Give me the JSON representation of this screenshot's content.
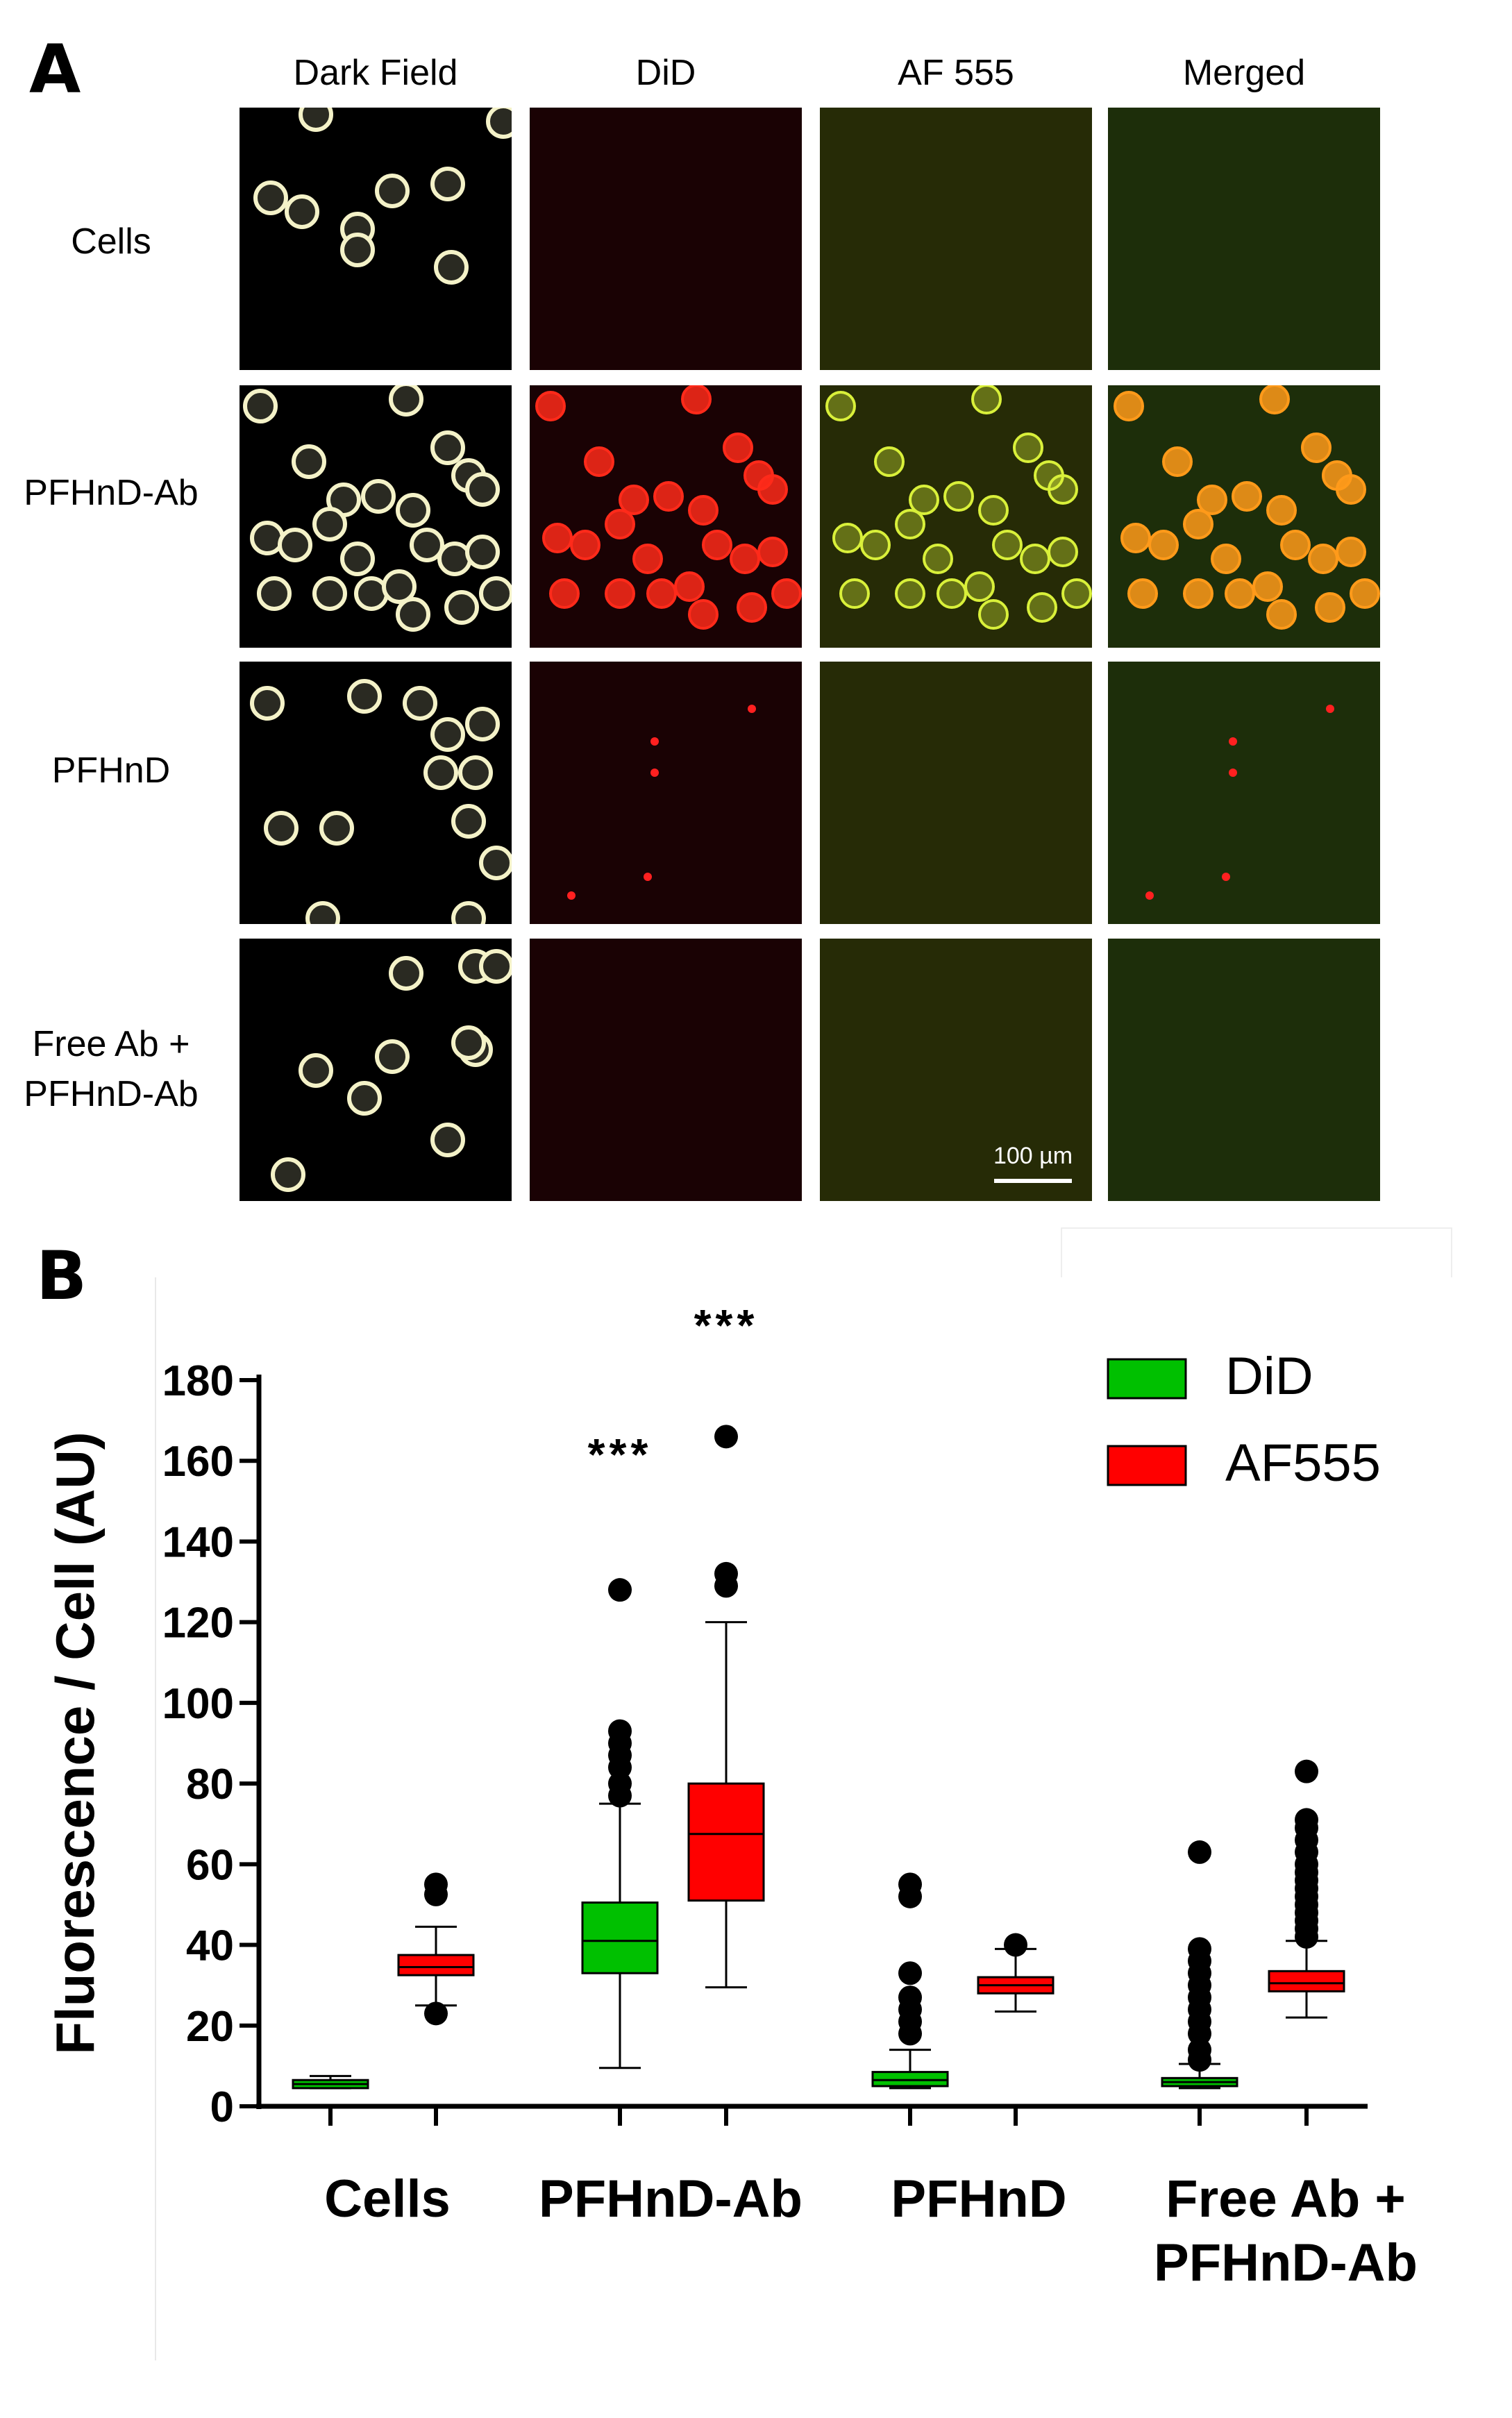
{
  "figure": {
    "panel_a_label": "A",
    "panel_b_label": "B"
  },
  "panel_a": {
    "columns": [
      "Dark Field",
      "DiD",
      "AF 555",
      "Merged"
    ],
    "rows": [
      {
        "label_lines": [
          "Cells"
        ]
      },
      {
        "label_lines": [
          "PFHnD-Ab"
        ]
      },
      {
        "label_lines": [
          "PFHnD"
        ]
      },
      {
        "label_lines": [
          "Free Ab +",
          "PFHnD-Ab"
        ]
      }
    ],
    "scale_bar_label": "100 µm",
    "colors": {
      "darkfield_bg": "#000000",
      "did_bg": "#1a0204",
      "af555_bg": "#262b06",
      "merged_bg": "#1d2e0a",
      "did_signal": "#ff2a1a",
      "af555_signal": "#d9f03a",
      "merged_signal": "#ff9a1a",
      "cell_ring": "#f4f2c8"
    }
  },
  "chart_data": {
    "type": "box",
    "categories": [
      "Cells",
      "PFHnD-Ab",
      "PFHnD",
      "Free Ab + PFHnD-Ab"
    ],
    "category_label_lines": [
      [
        "Cells"
      ],
      [
        "PFHnD-Ab"
      ],
      [
        "PFHnD"
      ],
      [
        "Free Ab +",
        "PFHnD-Ab"
      ]
    ],
    "ylabel": "Fluorescence / Cell (AU)",
    "ylim": [
      0,
      180
    ],
    "yticks": [
      0,
      20,
      40,
      60,
      80,
      100,
      120,
      140,
      160,
      180
    ],
    "legend_position": "top-right",
    "series": [
      {
        "name": "DiD",
        "color": "#00c000",
        "boxes": [
          {
            "q1": 4.5,
            "median": 5.5,
            "q3": 6.5,
            "whisker_low": 4.5,
            "whisker_high": 7.5,
            "outliers": []
          },
          {
            "q1": 33,
            "median": 41,
            "q3": 50.5,
            "whisker_low": 9.5,
            "whisker_high": 75,
            "outliers": [
              77,
              80,
              84,
              87,
              90,
              93,
              128
            ]
          },
          {
            "q1": 5,
            "median": 6.5,
            "q3": 8.5,
            "whisker_low": 4.5,
            "whisker_high": 14,
            "outliers": [
              18,
              21,
              24,
              27,
              33,
              52,
              55
            ]
          },
          {
            "q1": 5,
            "median": 6,
            "q3": 7,
            "whisker_low": 4.5,
            "whisker_high": 10.5,
            "outliers": [
              11.5,
              14,
              18,
              21,
              24,
              27,
              30,
              33,
              36,
              39,
              63
            ]
          }
        ]
      },
      {
        "name": "AF555",
        "color": "#ff0000",
        "boxes": [
          {
            "q1": 32.5,
            "median": 34.5,
            "q3": 37.5,
            "whisker_low": 25,
            "whisker_high": 44.5,
            "outliers": [
              23,
              52.5,
              55
            ]
          },
          {
            "q1": 51,
            "median": 67.5,
            "q3": 80,
            "whisker_low": 29.5,
            "whisker_high": 120,
            "outliers": [
              129,
              132,
              166
            ]
          },
          {
            "q1": 28,
            "median": 30,
            "q3": 32,
            "whisker_low": 23.5,
            "whisker_high": 39,
            "outliers": [
              40
            ]
          },
          {
            "q1": 28.5,
            "median": 30.5,
            "q3": 33.5,
            "whisker_low": 22,
            "whisker_high": 41,
            "outliers": [
              42,
              44,
              46,
              48,
              50,
              52,
              54,
              56,
              58,
              60,
              63,
              66,
              69,
              71,
              83
            ]
          }
        ]
      }
    ],
    "annotations": [
      {
        "text": "***",
        "category": "PFHnD-Ab",
        "series": "DiD",
        "y": 163
      },
      {
        "text": "***",
        "category": "PFHnD-Ab",
        "series": "AF555",
        "y": 195
      }
    ]
  }
}
